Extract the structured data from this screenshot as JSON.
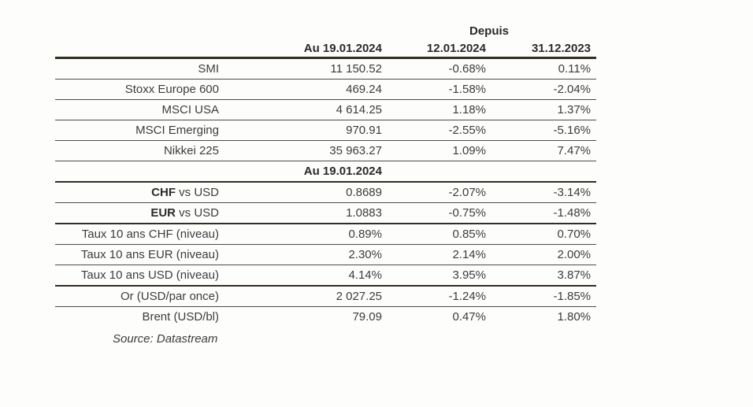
{
  "colors": {
    "thick-rule": "#332d21",
    "thin-rule": "#4b4b4b",
    "text": "#3c3c3c",
    "heading-text": "#2a2a2a"
  },
  "table": {
    "header": {
      "depuis_label": "Depuis",
      "value_col": "Au 19.01.2024",
      "change_col_1": "12.01.2024",
      "change_col_2": "31.12.2023"
    },
    "mid_header": "Au 19.01.2024",
    "rows": [
      {
        "label": "SMI",
        "value": "11 150.52",
        "change_1": "-0.68%",
        "change_2": "0.11%"
      },
      {
        "label": "Stoxx Europe 600",
        "value": "469.24",
        "change_1": "-1.58%",
        "change_2": "-2.04%"
      },
      {
        "label": "MSCI USA",
        "value": "4 614.25",
        "change_1": "1.18%",
        "change_2": "1.37%"
      },
      {
        "label": "MSCI Emerging",
        "value": "970.91",
        "change_1": "-2.55%",
        "change_2": "-5.16%"
      },
      {
        "label": "Nikkei 225",
        "value": "35 963.27",
        "change_1": "1.09%",
        "change_2": "7.47%"
      },
      {
        "label_bold": "CHF",
        "label_rest": " vs USD",
        "value": "0.8689",
        "change_1": "-2.07%",
        "change_2": "-3.14%"
      },
      {
        "label_bold": "EUR",
        "label_rest": " vs USD",
        "value": "1.0883",
        "change_1": "-0.75%",
        "change_2": "-1.48%"
      },
      {
        "label": "Taux 10 ans CHF (niveau)",
        "value": "0.89%",
        "change_1": "0.85%",
        "change_2": "0.70%"
      },
      {
        "label": "Taux 10 ans EUR (niveau)",
        "value": "2.30%",
        "change_1": "2.14%",
        "change_2": "2.00%"
      },
      {
        "label": "Taux 10 ans USD (niveau)",
        "value": "4.14%",
        "change_1": "3.95%",
        "change_2": "3.87%"
      },
      {
        "label": "Or (USD/par once)",
        "value": "2 027.25",
        "change_1": "-1.24%",
        "change_2": "-1.85%"
      },
      {
        "label": "Brent (USD/bl)",
        "value": "79.09",
        "change_1": "0.47%",
        "change_2": "1.80%"
      }
    ],
    "source": "Source: Datastream"
  }
}
